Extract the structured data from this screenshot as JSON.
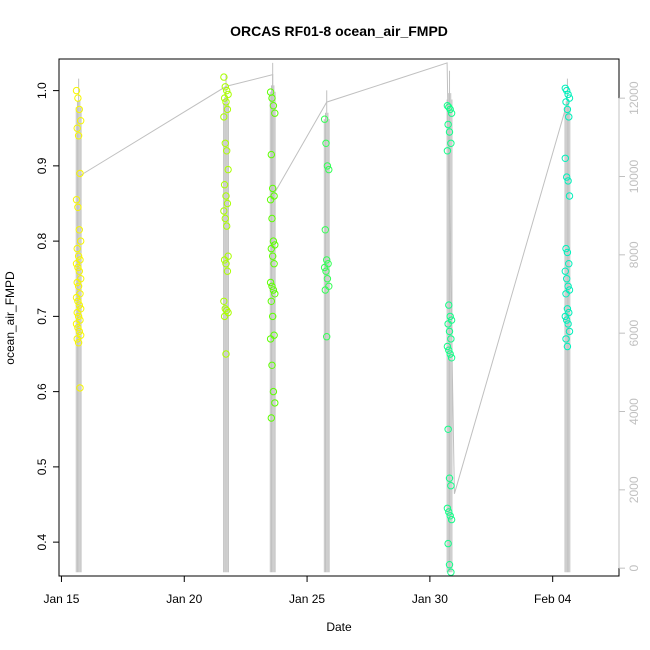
{
  "chart_data": {
    "type": "scatter",
    "title": "ORCAS RF01-8 ocean_air_FMPD",
    "xlabel": "Date",
    "ylabel": "ocean_air_FMPD",
    "x_ticks": [
      {
        "label": "Jan 15",
        "day": 15
      },
      {
        "label": "Jan 20",
        "day": 20
      },
      {
        "label": "Jan 25",
        "day": 25
      },
      {
        "label": "Jan 30",
        "day": 30
      },
      {
        "label": "Feb 04",
        "day": 35
      }
    ],
    "xlim": [
      14.9,
      37.7
    ],
    "y_ticks": [
      "0.4",
      "0.5",
      "0.6",
      "0.7",
      "0.8",
      "0.9",
      "1.0"
    ],
    "ylim": [
      0.355,
      1.042
    ],
    "y2_ticks": [
      "0",
      "2000",
      "4000",
      "6000",
      "8000",
      "10000",
      "12000"
    ],
    "y2lim": [
      -200,
      13000
    ],
    "altitude_color": "#c0c0c0",
    "flights": [
      {
        "day": 15.7,
        "color": "#f7f700",
        "spike_top": 12500,
        "points": [
          1.0,
          0.99,
          0.975,
          0.96,
          0.95,
          0.94,
          0.89,
          0.855,
          0.845,
          0.815,
          0.8,
          0.79,
          0.78,
          0.775,
          0.77,
          0.765,
          0.76,
          0.75,
          0.745,
          0.74,
          0.73,
          0.725,
          0.72,
          0.715,
          0.71,
          0.705,
          0.7,
          0.695,
          0.69,
          0.685,
          0.68,
          0.675,
          0.67,
          0.665,
          0.605
        ]
      },
      {
        "day": 21.7,
        "color": "#aaff00",
        "spike_top": 12600,
        "points": [
          1.018,
          1.005,
          1.0,
          0.995,
          0.99,
          0.985,
          0.975,
          0.965,
          0.93,
          0.92,
          0.895,
          0.875,
          0.86,
          0.85,
          0.84,
          0.83,
          0.82,
          0.78,
          0.775,
          0.77,
          0.76,
          0.72,
          0.71,
          0.708,
          0.705,
          0.7,
          0.65
        ]
      },
      {
        "day": 23.6,
        "color": "#5cff00",
        "spike_top": 12900,
        "points": [
          0.998,
          0.99,
          0.98,
          0.97,
          0.915,
          0.87,
          0.86,
          0.855,
          0.83,
          0.8,
          0.795,
          0.79,
          0.78,
          0.77,
          0.745,
          0.74,
          0.735,
          0.73,
          0.72,
          0.7,
          0.675,
          0.67,
          0.635,
          0.6,
          0.585,
          0.565
        ]
      },
      {
        "day": 25.8,
        "color": "#33ff55",
        "spike_top": 12200,
        "points": [
          0.962,
          0.93,
          0.9,
          0.895,
          0.815,
          0.775,
          0.77,
          0.765,
          0.76,
          0.75,
          0.74,
          0.735,
          0.673
        ]
      },
      {
        "day": 30.8,
        "color": "#11ff88",
        "spike_top": 12700,
        "points": [
          0.98,
          0.978,
          0.975,
          0.97,
          0.955,
          0.945,
          0.93,
          0.92,
          0.715,
          0.7,
          0.695,
          0.69,
          0.68,
          0.67,
          0.66,
          0.655,
          0.65,
          0.645,
          0.55,
          0.485,
          0.475,
          0.445,
          0.44,
          0.435,
          0.43,
          0.398,
          0.37,
          0.36
        ]
      },
      {
        "day": 35.6,
        "color": "#00f0bb",
        "spike_top": 12500,
        "points": [
          1.003,
          1.0,
          0.995,
          0.99,
          0.985,
          0.975,
          0.965,
          0.91,
          0.885,
          0.88,
          0.86,
          0.79,
          0.785,
          0.77,
          0.76,
          0.75,
          0.74,
          0.735,
          0.73,
          0.71,
          0.705,
          0.7,
          0.695,
          0.69,
          0.68,
          0.67,
          0.66
        ]
      }
    ],
    "altitude_trace": [
      [
        15.7,
        10000
      ],
      [
        21.7,
        12300
      ],
      [
        23.6,
        12600
      ],
      [
        23.6,
        9500
      ],
      [
        25.8,
        11900
      ],
      [
        30.7,
        12900
      ],
      [
        31.0,
        1900
      ],
      [
        35.6,
        11900
      ]
    ]
  }
}
